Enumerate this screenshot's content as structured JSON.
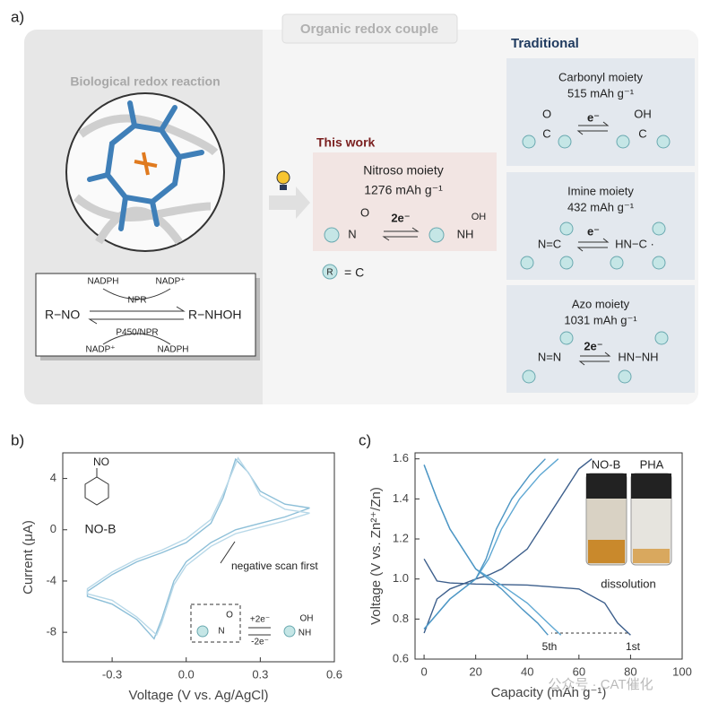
{
  "labels": {
    "a": "a)",
    "b": "b)",
    "c": "c)"
  },
  "panel_a": {
    "header": "Organic redox couple",
    "biological": {
      "title": "Biological redox reaction",
      "reactant": "R−NO",
      "product": "R−NHOH",
      "top_left": "NADPH",
      "top_right": "NADP⁺",
      "top_enzyme": "NPR",
      "bottom_enzyme": "P450/NPR",
      "bottom_left": "NADP⁺",
      "bottom_right": "NADPH"
    },
    "this_work": {
      "title": "This work",
      "name": "Nitroso moiety",
      "capacity": "1276 mAh g⁻¹",
      "electrons": "2e⁻",
      "n": "N",
      "o": "O",
      "nh": "NH",
      "oh": "OH",
      "legend_r": "R",
      "legend_eq": "= C"
    },
    "traditional": {
      "title": "Traditional",
      "items": [
        {
          "name": "Carbonyl moiety",
          "capacity": "515 mAh g⁻¹",
          "electrons": "e⁻",
          "atoms": [
            "O",
            "C",
            "OH",
            "C"
          ]
        },
        {
          "name": "Imine moiety",
          "capacity": "432 mAh g⁻¹",
          "electrons": "e⁻",
          "atoms": [
            "N=C",
            "HN−C ·"
          ]
        },
        {
          "name": "Azo moiety",
          "capacity": "1031 mAh g⁻¹",
          "electrons": "2e⁻",
          "atoms": [
            "N=N",
            "HN−NH"
          ]
        }
      ]
    }
  },
  "chart_data": [
    {
      "type": "line",
      "xlabel": "Voltage (V vs. Ag/AgCl)",
      "ylabel": "Current (μA)",
      "xlim": [
        -0.5,
        0.6
      ],
      "ylim": [
        -10.3,
        6
      ],
      "xticks": [
        -0.3,
        {
          "value": 0,
          "label": "0.0"
        },
        0.3,
        0.6
      ],
      "yticks": [
        -8,
        -4,
        0,
        4
      ],
      "series": [
        {
          "color": "#8dbfd8",
          "x": [
            0.5,
            0.4,
            0.3,
            0.2,
            0.1,
            0.0,
            -0.05,
            -0.1,
            -0.13,
            -0.2,
            -0.3,
            -0.4,
            -0.4,
            -0.3,
            -0.2,
            -0.1,
            0.0,
            0.1,
            0.15,
            0.2,
            0.25,
            0.3,
            0.4,
            0.5
          ],
          "values": [
            1.7,
            1.0,
            0.5,
            0,
            -1,
            -2.5,
            -4,
            -7,
            -8.5,
            -7,
            -5.8,
            -5.2,
            -4.8,
            -3.5,
            -2.5,
            -1.8,
            -1,
            0.5,
            2.5,
            5.5,
            4.5,
            3,
            2,
            1.7
          ]
        },
        {
          "color": "#b8d8e8",
          "x": [
            0.5,
            0.4,
            0.3,
            0.2,
            0.1,
            0.0,
            -0.05,
            -0.1,
            -0.12,
            -0.2,
            -0.3,
            -0.4,
            -0.4,
            -0.3,
            -0.2,
            -0.1,
            0.0,
            0.1,
            0.15,
            0.21,
            0.26,
            0.3,
            0.4,
            0.5
          ],
          "values": [
            1.3,
            0.7,
            0.2,
            -0.3,
            -1.3,
            -2.8,
            -4.3,
            -7.3,
            -8.2,
            -6.8,
            -5.5,
            -5.0,
            -4.6,
            -3.3,
            -2.3,
            -1.6,
            -0.7,
            0.8,
            2.8,
            5.6,
            4.2,
            2.7,
            1.6,
            1.3
          ]
        }
      ],
      "annotations": {
        "molecule": "NO-B",
        "substituent": "NO",
        "scan": "negative scan first",
        "forward": "+2e⁻",
        "backward": "-2e⁻",
        "n": "N",
        "o": "O",
        "nh": "NH",
        "oh": "OH"
      }
    },
    {
      "type": "line",
      "xlabel": "Capacity (mAh g⁻¹)",
      "ylabel": "Voltage (V vs. Zn²⁺/Zn)",
      "xlim": [
        -3.5,
        100
      ],
      "ylim": [
        0.6,
        1.63
      ],
      "xticks": [
        0,
        20,
        40,
        60,
        80,
        100
      ],
      "yticks": [
        0.6,
        0.8,
        {
          "value": 1.0,
          "label": "1.0"
        },
        1.2,
        1.4,
        1.6
      ],
      "series": [
        {
          "color": "#3d5f8c",
          "x": [
            0,
            5,
            10,
            20,
            40,
            60,
            70,
            75,
            80
          ],
          "values": [
            1.1,
            0.99,
            0.98,
            0.975,
            0.97,
            0.95,
            0.88,
            0.78,
            0.72
          ]
        },
        {
          "color": "#3d5f8c",
          "x": [
            0,
            5,
            10,
            20,
            25,
            30,
            40,
            50,
            60,
            65
          ],
          "values": [
            0.73,
            0.9,
            0.95,
            1.0,
            1.02,
            1.05,
            1.15,
            1.35,
            1.55,
            1.6
          ]
        },
        {
          "color": "#5fa8d3",
          "x": [
            0,
            5,
            10,
            20,
            30,
            40,
            48,
            53
          ],
          "values": [
            1.57,
            1.4,
            1.25,
            1.05,
            0.97,
            0.88,
            0.78,
            0.72
          ]
        },
        {
          "color": "#5fa8d3",
          "x": [
            0,
            10,
            20,
            25,
            30,
            37,
            45,
            52
          ],
          "values": [
            0.75,
            0.9,
            1.0,
            1.1,
            1.25,
            1.4,
            1.52,
            1.6
          ]
        },
        {
          "color": "#4d96c4",
          "x": [
            0,
            5,
            10,
            20,
            30,
            38,
            44,
            48
          ],
          "values": [
            1.57,
            1.4,
            1.25,
            1.05,
            0.95,
            0.85,
            0.78,
            0.72
          ]
        },
        {
          "color": "#4d96c4",
          "x": [
            0,
            10,
            20,
            24,
            28,
            34,
            41,
            47
          ],
          "values": [
            0.75,
            0.9,
            1.0,
            1.1,
            1.25,
            1.4,
            1.52,
            1.6
          ]
        }
      ],
      "annotations": {
        "first": "1st",
        "fifth": "5th",
        "vial_1": "NO-B",
        "vial_2": "PHA",
        "dissolution": "dissolution"
      }
    }
  ],
  "watermark": "公众号 · CAT催化"
}
